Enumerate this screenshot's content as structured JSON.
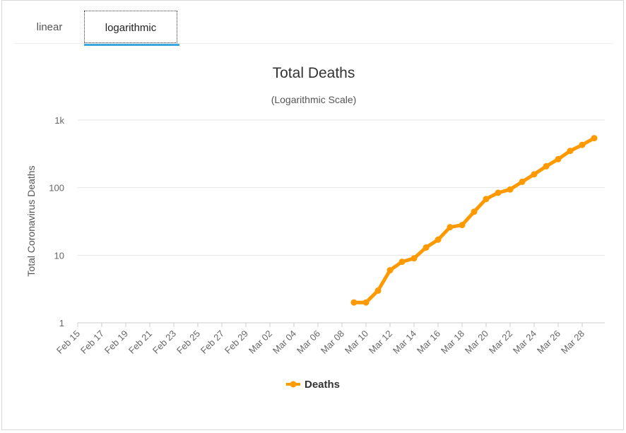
{
  "tabs": [
    {
      "label": "linear",
      "active": false
    },
    {
      "label": "logarithmic",
      "active": true
    }
  ],
  "colors": {
    "series": "#ff9900",
    "grid": "#e6e6e6",
    "axis_text": "#666666",
    "title": "#333333",
    "tab_underline": "#3ba9e0"
  },
  "chart_data": {
    "type": "line",
    "title": "Total Deaths",
    "subtitle": "(Logarithmic Scale)",
    "ylabel": "Total Coronavirus Deaths",
    "xlabel": "",
    "y_scale": "log",
    "ylim": [
      1,
      1000
    ],
    "y_ticks": [
      {
        "value": 1,
        "label": "1"
      },
      {
        "value": 10,
        "label": "10"
      },
      {
        "value": 100,
        "label": "100"
      },
      {
        "value": 1000,
        "label": "1k"
      }
    ],
    "x_range": [
      "Feb 15",
      "Mar 30"
    ],
    "x_tick_labels": [
      "Feb 15",
      "Feb 17",
      "Feb 19",
      "Feb 21",
      "Feb 23",
      "Feb 25",
      "Feb 27",
      "Feb 29",
      "Mar 02",
      "Mar 04",
      "Mar 06",
      "Mar 08",
      "Mar 10",
      "Mar 12",
      "Mar 14",
      "Mar 16",
      "Mar 18",
      "Mar 20",
      "Mar 22",
      "Mar 24",
      "Mar 26",
      "Mar 28"
    ],
    "grid": true,
    "legend": "bottom-center",
    "series": [
      {
        "name": "Deaths",
        "x": [
          "Mar 09",
          "Mar 10",
          "Mar 11",
          "Mar 12",
          "Mar 13",
          "Mar 14",
          "Mar 15",
          "Mar 16",
          "Mar 17",
          "Mar 18",
          "Mar 19",
          "Mar 20",
          "Mar 21",
          "Mar 22",
          "Mar 23",
          "Mar 24",
          "Mar 25",
          "Mar 26",
          "Mar 27",
          "Mar 28",
          "Mar 29"
        ],
        "values": [
          2,
          2,
          3,
          6,
          8,
          9,
          13,
          17,
          26,
          28,
          44,
          68,
          84,
          94,
          122,
          158,
          207,
          264,
          350,
          430,
          540
        ]
      }
    ]
  }
}
